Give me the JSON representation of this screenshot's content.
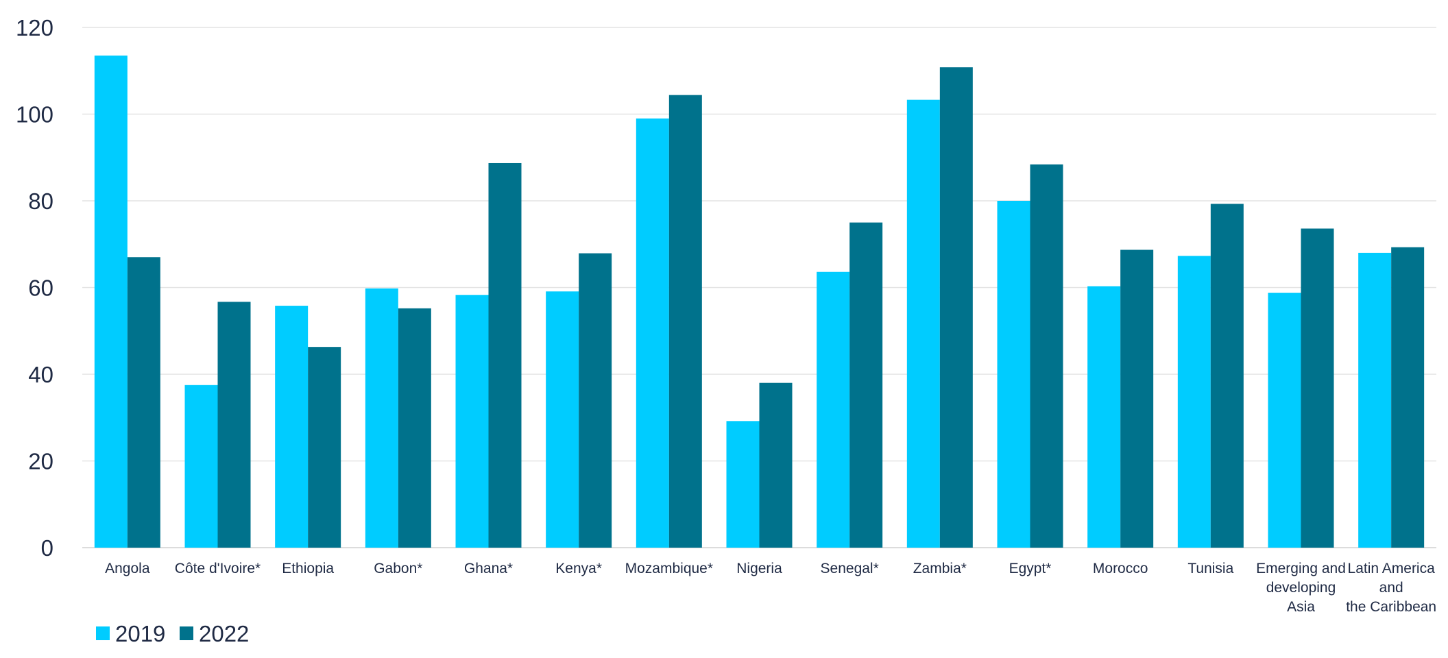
{
  "chart_data": {
    "type": "bar",
    "categories": [
      "Angola",
      "Côte d'Ivoire*",
      "Ethiopia",
      "Gabon*",
      "Ghana*",
      "Kenya*",
      "Mozambique*",
      "Nigeria",
      "Senegal*",
      "Zambia*",
      "Egypt*",
      "Morocco",
      "Tunisia",
      "Emerging and developing Asia",
      "Latin America and the Caribbean"
    ],
    "category_lines": [
      [
        "Angola"
      ],
      [
        "Côte d'Ivoire*"
      ],
      [
        "Ethiopia"
      ],
      [
        "Gabon*"
      ],
      [
        "Ghana*"
      ],
      [
        "Kenya*"
      ],
      [
        "Mozambique*"
      ],
      [
        "Nigeria"
      ],
      [
        "Senegal*"
      ],
      [
        "Zambia*"
      ],
      [
        "Egypt*"
      ],
      [
        "Morocco"
      ],
      [
        "Tunisia"
      ],
      [
        "Emerging and",
        "developing",
        "Asia"
      ],
      [
        "Latin America",
        "and",
        "the Caribbean"
      ]
    ],
    "series": [
      {
        "name": "2019",
        "color": "#00CCFF",
        "values": [
          113.5,
          37.5,
          55.8,
          59.8,
          58.3,
          59.1,
          99.0,
          29.2,
          63.6,
          103.3,
          80.0,
          60.3,
          67.3,
          58.8,
          68.0
        ]
      },
      {
        "name": "2022",
        "color": "#00728C",
        "values": [
          67.0,
          56.7,
          46.3,
          55.2,
          88.7,
          67.9,
          104.4,
          38.0,
          75.0,
          110.8,
          88.4,
          68.7,
          79.3,
          73.6,
          69.3
        ]
      }
    ],
    "y_ticks": [
      "0",
      "20",
      "40",
      "60",
      "80",
      "100",
      "120"
    ],
    "ylim": [
      0,
      120
    ],
    "grid": true,
    "legend_position": "bottom-left",
    "title": "",
    "xlabel": "",
    "ylabel": ""
  }
}
